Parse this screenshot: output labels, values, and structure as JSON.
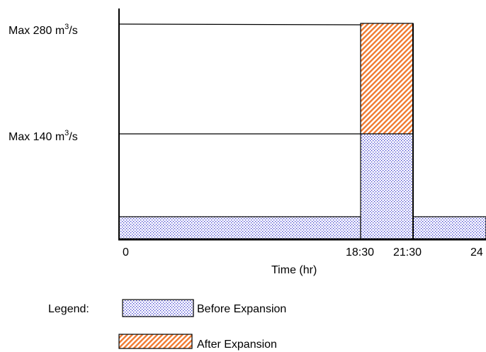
{
  "y_labels": {
    "max280": {
      "prefix": "Max 280 m",
      "sup": "3",
      "suffix": "/s"
    },
    "max140": {
      "prefix": "Max 140 m",
      "sup": "3",
      "suffix": "/s"
    }
  },
  "x_ticks": [
    "0",
    "18:30",
    "21:30",
    "24"
  ],
  "x_axis_label": "Time (hr)",
  "legend": {
    "title": "Legend:",
    "before": "Before Expansion",
    "after": "After Expansion"
  },
  "colors": {
    "before_pattern": "#3333cc",
    "after_pattern": "#f07a30",
    "axis": "#000000"
  }
}
